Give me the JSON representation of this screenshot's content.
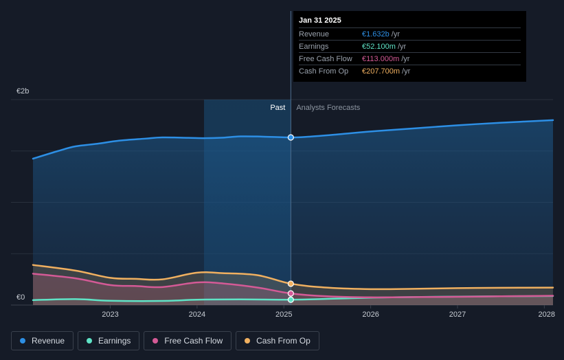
{
  "chart_data": {
    "type": "area",
    "title": "",
    "y_axis": {
      "label_top": "€2b",
      "label_bottom": "€0",
      "ylim": [
        0,
        2000
      ]
    },
    "x_axis": {
      "ticks": [
        "2023",
        "2024",
        "2025",
        "2026",
        "2027",
        "2028"
      ],
      "xlim": [
        2022.11,
        2028.1
      ]
    },
    "past_label": "Past",
    "forecast_label": "Analysts Forecasts",
    "divider_x": 2025.08,
    "highlight_start": 2024.08,
    "series": [
      {
        "name": "Revenue",
        "color": "#2d8fe5",
        "x": [
          2022.11,
          2022.4,
          2022.6,
          2022.85,
          2023.1,
          2023.4,
          2023.6,
          2023.9,
          2024.1,
          2024.3,
          2024.5,
          2024.75,
          2025.08,
          2025.3,
          2025.6,
          2026.0,
          2026.5,
          2027.0,
          2027.5,
          2028.1
        ],
        "values": [
          1425,
          1500,
          1545,
          1570,
          1600,
          1620,
          1632,
          1628,
          1625,
          1630,
          1642,
          1640,
          1632,
          1640,
          1660,
          1690,
          1720,
          1750,
          1775,
          1800
        ]
      },
      {
        "name": "Earnings",
        "color": "#5fe3c6",
        "x": [
          2022.11,
          2022.6,
          2023.0,
          2023.6,
          2024.0,
          2024.5,
          2025.08,
          2025.5,
          2026.0,
          2026.5,
          2027.0,
          2027.5,
          2028.1
        ],
        "values": [
          48,
          58,
          42,
          40,
          52,
          55,
          52,
          60,
          72,
          78,
          82,
          85,
          88
        ]
      },
      {
        "name": "Free Cash Flow",
        "color": "#d45a96",
        "x": [
          2022.11,
          2022.6,
          2023.0,
          2023.3,
          2023.6,
          2024.0,
          2024.3,
          2024.7,
          2025.08,
          2025.5,
          2026.0,
          2026.5,
          2027.0,
          2027.5,
          2028.1
        ],
        "values": [
          305,
          260,
          195,
          185,
          175,
          220,
          210,
          170,
          113,
          85,
          75,
          78,
          80,
          85,
          90
        ]
      },
      {
        "name": "Cash From Op",
        "color": "#f0b060",
        "x": [
          2022.11,
          2022.6,
          2023.0,
          2023.3,
          2023.6,
          2024.0,
          2024.3,
          2024.7,
          2025.08,
          2025.5,
          2026.0,
          2026.5,
          2027.0,
          2027.5,
          2028.1
        ],
        "values": [
          390,
          335,
          265,
          255,
          250,
          315,
          310,
          290,
          207.7,
          170,
          155,
          158,
          165,
          168,
          170
        ]
      }
    ],
    "tooltip": {
      "date": "Jan 31 2025",
      "rows": [
        {
          "label": "Revenue",
          "value": "€1.632b",
          "unit": "/yr",
          "color": "#2d8fe5"
        },
        {
          "label": "Earnings",
          "value": "€52.100m",
          "unit": "/yr",
          "color": "#5fe3c6"
        },
        {
          "label": "Free Cash Flow",
          "value": "€113.000m",
          "unit": "/yr",
          "color": "#d45a96"
        },
        {
          "label": "Cash From Op",
          "value": "€207.700m",
          "unit": "/yr",
          "color": "#f0b060"
        }
      ]
    },
    "legend": [
      {
        "label": "Revenue",
        "color": "#2d8fe5"
      },
      {
        "label": "Earnings",
        "color": "#5fe3c6"
      },
      {
        "label": "Free Cash Flow",
        "color": "#d45a96"
      },
      {
        "label": "Cash From Op",
        "color": "#f0b060"
      }
    ]
  }
}
